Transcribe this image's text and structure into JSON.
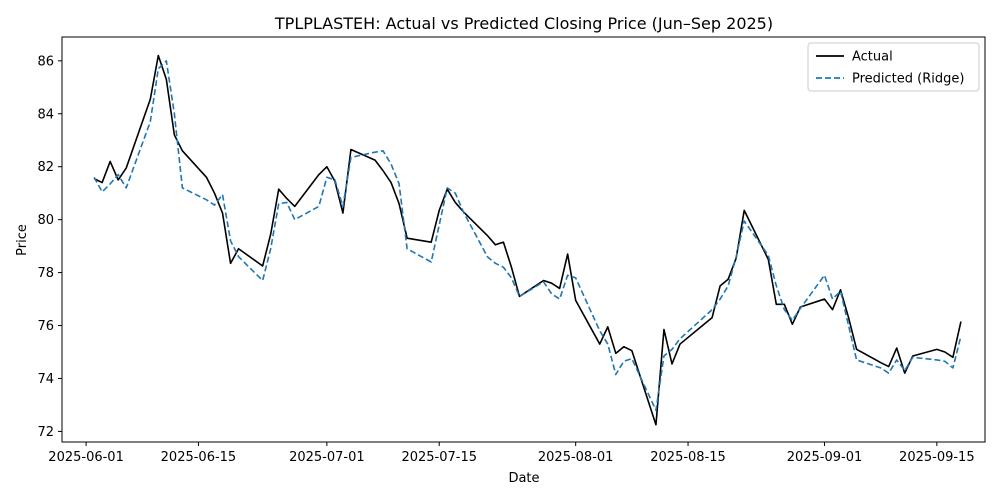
{
  "chart_data": {
    "type": "line",
    "title": "TPLPLASTEH: Actual vs Predicted Closing Price (Jun–Sep 2025)",
    "xlabel": "Date",
    "ylabel": "Price",
    "xlim": [
      "2025-05-29",
      "2025-09-21"
    ],
    "ylim": [
      71.6,
      86.9
    ],
    "x_ticks": [
      "2025-06-01",
      "2025-06-15",
      "2025-07-01",
      "2025-07-15",
      "2025-08-01",
      "2025-08-15",
      "2025-09-01",
      "2025-09-15"
    ],
    "y_ticks": [
      72,
      74,
      76,
      78,
      80,
      82,
      84,
      86
    ],
    "grid": false,
    "legend_position": "top-right",
    "series": [
      {
        "name": "Actual",
        "color": "#000000",
        "style": "solid",
        "points": [
          [
            "2025-06-02",
            81.55
          ],
          [
            "2025-06-03",
            81.4
          ],
          [
            "2025-06-04",
            82.2
          ],
          [
            "2025-06-05",
            81.5
          ],
          [
            "2025-06-06",
            81.95
          ],
          [
            "2025-06-09",
            84.55
          ],
          [
            "2025-06-10",
            86.2
          ],
          [
            "2025-06-11",
            85.3
          ],
          [
            "2025-06-12",
            83.2
          ],
          [
            "2025-06-13",
            82.6
          ],
          [
            "2025-06-16",
            81.6
          ],
          [
            "2025-06-17",
            81.0
          ],
          [
            "2025-06-18",
            80.25
          ],
          [
            "2025-06-19",
            78.35
          ],
          [
            "2025-06-20",
            78.9
          ],
          [
            "2025-06-23",
            78.25
          ],
          [
            "2025-06-24",
            79.45
          ],
          [
            "2025-06-25",
            81.15
          ],
          [
            "2025-06-26",
            80.8
          ],
          [
            "2025-06-27",
            80.5
          ],
          [
            "2025-06-30",
            81.7
          ],
          [
            "2025-07-01",
            82.0
          ],
          [
            "2025-07-02",
            81.45
          ],
          [
            "2025-07-03",
            80.25
          ],
          [
            "2025-07-04",
            82.65
          ],
          [
            "2025-07-07",
            82.25
          ],
          [
            "2025-07-08",
            81.85
          ],
          [
            "2025-07-09",
            81.4
          ],
          [
            "2025-07-10",
            80.6
          ],
          [
            "2025-07-11",
            79.3
          ],
          [
            "2025-07-14",
            79.15
          ],
          [
            "2025-07-15",
            80.35
          ],
          [
            "2025-07-16",
            81.15
          ],
          [
            "2025-07-17",
            80.65
          ],
          [
            "2025-07-18",
            80.3
          ],
          [
            "2025-07-21",
            79.4
          ],
          [
            "2025-07-22",
            79.05
          ],
          [
            "2025-07-23",
            79.15
          ],
          [
            "2025-07-24",
            78.2
          ],
          [
            "2025-07-25",
            77.1
          ],
          [
            "2025-07-28",
            77.7
          ],
          [
            "2025-07-29",
            77.6
          ],
          [
            "2025-07-30",
            77.4
          ],
          [
            "2025-07-31",
            78.7
          ],
          [
            "2025-08-01",
            76.95
          ],
          [
            "2025-08-04",
            75.3
          ],
          [
            "2025-08-05",
            75.95
          ],
          [
            "2025-08-06",
            74.95
          ],
          [
            "2025-08-07",
            75.2
          ],
          [
            "2025-08-08",
            75.05
          ],
          [
            "2025-08-11",
            72.25
          ],
          [
            "2025-08-12",
            75.85
          ],
          [
            "2025-08-13",
            74.55
          ],
          [
            "2025-08-14",
            75.3
          ],
          [
            "2025-08-18",
            76.3
          ],
          [
            "2025-08-19",
            77.5
          ],
          [
            "2025-08-20",
            77.75
          ],
          [
            "2025-08-21",
            78.55
          ],
          [
            "2025-08-22",
            80.35
          ],
          [
            "2025-08-25",
            78.5
          ],
          [
            "2025-08-26",
            76.8
          ],
          [
            "2025-08-27",
            76.8
          ],
          [
            "2025-08-28",
            76.05
          ],
          [
            "2025-08-29",
            76.7
          ],
          [
            "2025-09-01",
            77.0
          ],
          [
            "2025-09-02",
            76.6
          ],
          [
            "2025-09-03",
            77.35
          ],
          [
            "2025-09-04",
            76.3
          ],
          [
            "2025-09-05",
            75.1
          ],
          [
            "2025-09-08",
            74.6
          ],
          [
            "2025-09-09",
            74.45
          ],
          [
            "2025-09-10",
            75.15
          ],
          [
            "2025-09-11",
            74.2
          ],
          [
            "2025-09-12",
            74.85
          ],
          [
            "2025-09-15",
            75.1
          ],
          [
            "2025-09-16",
            75.0
          ],
          [
            "2025-09-17",
            74.8
          ],
          [
            "2025-09-18",
            76.15
          ]
        ]
      },
      {
        "name": "Predicted (Ridge)",
        "color": "#1f77b4",
        "style": "dashed",
        "points": [
          [
            "2025-06-02",
            81.6
          ],
          [
            "2025-06-03",
            81.05
          ],
          [
            "2025-06-04",
            81.35
          ],
          [
            "2025-06-05",
            81.7
          ],
          [
            "2025-06-06",
            81.2
          ],
          [
            "2025-06-09",
            83.7
          ],
          [
            "2025-06-10",
            85.7
          ],
          [
            "2025-06-11",
            86.0
          ],
          [
            "2025-06-12",
            84.0
          ],
          [
            "2025-06-13",
            81.2
          ],
          [
            "2025-06-16",
            80.75
          ],
          [
            "2025-06-17",
            80.55
          ],
          [
            "2025-06-18",
            80.95
          ],
          [
            "2025-06-19",
            79.2
          ],
          [
            "2025-06-20",
            78.6
          ],
          [
            "2025-06-23",
            77.7
          ],
          [
            "2025-06-24",
            78.9
          ],
          [
            "2025-06-25",
            80.6
          ],
          [
            "2025-06-26",
            80.65
          ],
          [
            "2025-06-27",
            80.0
          ],
          [
            "2025-06-30",
            80.5
          ],
          [
            "2025-07-01",
            81.6
          ],
          [
            "2025-07-02",
            81.5
          ],
          [
            "2025-07-03",
            80.5
          ],
          [
            "2025-07-04",
            82.35
          ],
          [
            "2025-07-07",
            82.55
          ],
          [
            "2025-07-08",
            82.6
          ],
          [
            "2025-07-09",
            82.1
          ],
          [
            "2025-07-10",
            81.35
          ],
          [
            "2025-07-11",
            78.9
          ],
          [
            "2025-07-14",
            78.4
          ],
          [
            "2025-07-15",
            79.8
          ],
          [
            "2025-07-16",
            81.2
          ],
          [
            "2025-07-17",
            81.0
          ],
          [
            "2025-07-18",
            80.3
          ],
          [
            "2025-07-21",
            78.6
          ],
          [
            "2025-07-22",
            78.35
          ],
          [
            "2025-07-23",
            78.2
          ],
          [
            "2025-07-24",
            77.8
          ],
          [
            "2025-07-25",
            77.1
          ],
          [
            "2025-07-28",
            77.65
          ],
          [
            "2025-07-29",
            77.2
          ],
          [
            "2025-07-30",
            77.0
          ],
          [
            "2025-07-31",
            77.9
          ],
          [
            "2025-08-01",
            77.8
          ],
          [
            "2025-08-04",
            75.8
          ],
          [
            "2025-08-05",
            75.3
          ],
          [
            "2025-08-06",
            74.15
          ],
          [
            "2025-08-07",
            74.65
          ],
          [
            "2025-08-08",
            74.75
          ],
          [
            "2025-08-11",
            72.8
          ],
          [
            "2025-08-12",
            74.85
          ],
          [
            "2025-08-13",
            75.1
          ],
          [
            "2025-08-14",
            75.5
          ],
          [
            "2025-08-18",
            76.6
          ],
          [
            "2025-08-19",
            77.0
          ],
          [
            "2025-08-20",
            77.5
          ],
          [
            "2025-08-21",
            78.6
          ],
          [
            "2025-08-22",
            79.95
          ],
          [
            "2025-08-25",
            78.65
          ],
          [
            "2025-08-26",
            77.5
          ],
          [
            "2025-08-27",
            76.6
          ],
          [
            "2025-08-28",
            76.2
          ],
          [
            "2025-08-29",
            76.65
          ],
          [
            "2025-09-01",
            77.9
          ],
          [
            "2025-09-02",
            77.0
          ],
          [
            "2025-09-03",
            77.3
          ],
          [
            "2025-09-04",
            76.0
          ],
          [
            "2025-09-05",
            74.7
          ],
          [
            "2025-09-08",
            74.4
          ],
          [
            "2025-09-09",
            74.2
          ],
          [
            "2025-09-10",
            74.7
          ],
          [
            "2025-09-11",
            74.3
          ],
          [
            "2025-09-12",
            74.8
          ],
          [
            "2025-09-15",
            74.7
          ],
          [
            "2025-09-16",
            74.65
          ],
          [
            "2025-09-17",
            74.4
          ],
          [
            "2025-09-18",
            75.6
          ]
        ]
      }
    ]
  }
}
